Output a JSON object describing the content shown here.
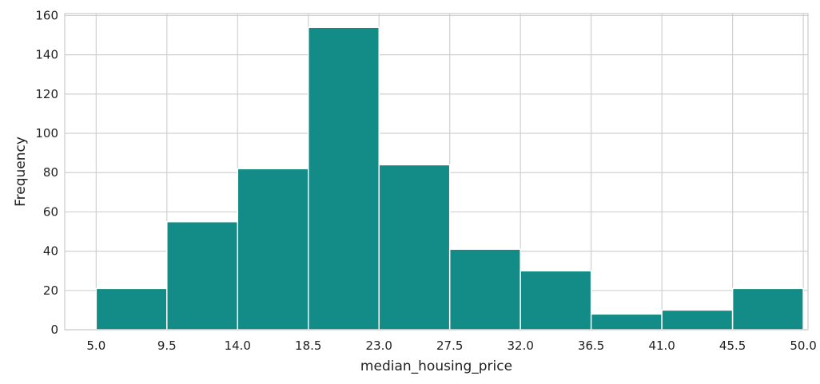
{
  "chart_data": {
    "type": "bar",
    "subtype": "histogram",
    "title": "",
    "xlabel": "median_housing_price",
    "ylabel": "Frequency",
    "bin_edges": [
      5.0,
      9.5,
      14.0,
      18.5,
      23.0,
      27.5,
      32.0,
      36.5,
      41.0,
      45.5,
      50.0
    ],
    "x_tick_labels": [
      "5.0",
      "9.5",
      "14.0",
      "18.5",
      "23.0",
      "27.5",
      "32.0",
      "36.5",
      "41.0",
      "45.5",
      "50.0"
    ],
    "values": [
      21,
      55,
      82,
      154,
      84,
      41,
      30,
      8,
      10,
      21
    ],
    "xlim": [
      3.0,
      50.3
    ],
    "ylim": [
      0,
      161
    ],
    "y_ticks": [
      0,
      20,
      40,
      60,
      80,
      100,
      120,
      140,
      160
    ],
    "y_tick_labels": [
      "0",
      "20",
      "40",
      "60",
      "80",
      "100",
      "120",
      "140",
      "160"
    ],
    "grid": true,
    "legend": "none",
    "colors": {
      "bar": "#138b87",
      "grid": "#d0d0d0",
      "frame": "#cccccc",
      "text": "#222222"
    }
  }
}
